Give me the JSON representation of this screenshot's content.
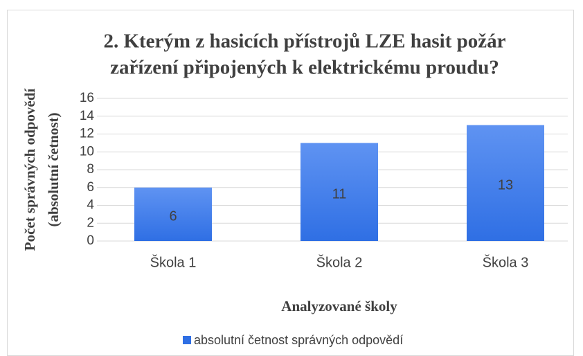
{
  "chart_data": {
    "type": "bar",
    "title": [
      "2. Kterým z hasicích přístrojů LZE hasit požár",
      "zařízení připojených k elektrickému proudu?"
    ],
    "ylabel": [
      "Počet správných odpovědí",
      "(absolutní četnost)"
    ],
    "xlabel": "Analyzované školy",
    "categories": [
      "Škola 1",
      "Škola 2",
      "Škola 3"
    ],
    "series": [
      {
        "name": "absolutní četnost správných odpovědí",
        "color": "#2f6fe4",
        "values": [
          6,
          11,
          13
        ]
      }
    ],
    "ylim": [
      0,
      16
    ],
    "yticks": [
      0,
      2,
      4,
      6,
      8,
      10,
      12,
      14,
      16
    ],
    "grid": true,
    "legend": "bottom"
  }
}
